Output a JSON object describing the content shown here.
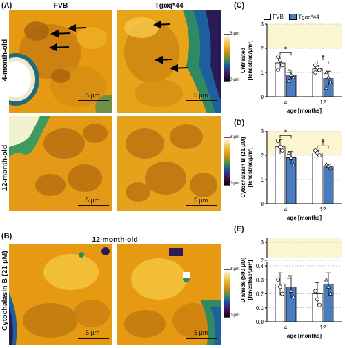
{
  "panels": {
    "A": "(A)",
    "B": "(B)",
    "C": "(C)",
    "D": "(D)",
    "E": "(E)"
  },
  "micrographs": {
    "col_fvb": "FVB",
    "col_tg": "Tgαq*44",
    "row_4m": "4-month-old",
    "row_12m": "12-month-old",
    "b_title": "12-month-old",
    "b_row": "Cytochalasin B (21 μM)",
    "scale": "5 μm",
    "cbar_top": "3 μm",
    "cbar_bottom": "0 μm"
  },
  "legend": {
    "fvb": "FVB",
    "tg": "Tgαq*44"
  },
  "colors": {
    "fvb_bar": "#ffffff",
    "tg_bar": "#4a7bbf",
    "shade": "#fbf6cf"
  },
  "chart_data": [
    {
      "type": "bar",
      "panel": "C",
      "ylabel": "Untreated\n[fenestrae/μm²]",
      "xlabel": "age [months]",
      "categories": [
        "4",
        "12"
      ],
      "ylim": [
        0,
        3
      ],
      "yticks": [
        0,
        1,
        2,
        3
      ],
      "series": [
        {
          "name": "FVB",
          "values": [
            1.4,
            1.15
          ],
          "err": [
            0.25,
            0.15
          ],
          "points": [
            [
              1.65,
              1.5,
              1.3,
              1.1
            ],
            [
              1.3,
              1.2,
              1.1,
              1.0
            ]
          ]
        },
        {
          "name": "Tgαq*44",
          "values": [
            0.9,
            0.75
          ],
          "err": [
            0.2,
            0.3
          ],
          "points": [
            [
              1.05,
              0.9,
              0.8,
              0.65
            ],
            [
              1.0,
              0.8,
              0.6,
              0.35
            ]
          ]
        }
      ],
      "annotations": [
        "*",
        "†"
      ]
    },
    {
      "type": "bar",
      "panel": "D",
      "ylabel": "Cytochalasin B (21 μM)\n[fenestrae/μm²]",
      "xlabel": "age [months]",
      "categories": [
        "4",
        "12"
      ],
      "ylim": [
        0,
        3
      ],
      "yticks": [
        0,
        1,
        2,
        3
      ],
      "series": [
        {
          "name": "FVB",
          "values": [
            2.35,
            2.1
          ],
          "err": [
            0.3,
            0.12
          ],
          "points": [
            [
              2.6,
              2.35,
              2.2
            ],
            [
              2.2,
              2.1,
              2.0
            ]
          ]
        },
        {
          "name": "Tgαq*44",
          "values": [
            1.9,
            1.55
          ],
          "err": [
            0.25,
            0.08
          ],
          "points": [
            [
              2.1,
              1.9,
              1.6
            ],
            [
              1.62,
              1.55,
              1.48
            ]
          ]
        }
      ],
      "annotations": [
        "*",
        "†"
      ]
    },
    {
      "type": "bar",
      "panel": "E",
      "ylabel": "Diamide (500 μM)\n[fenestrae/μm²]",
      "xlabel": "age [months]",
      "categories": [
        "4",
        "12"
      ],
      "ylim": [
        0,
        3
      ],
      "yticks_lower": [
        0.0,
        0.1,
        0.2,
        0.3,
        0.4
      ],
      "yticks_upper": [
        2,
        3
      ],
      "series": [
        {
          "name": "FVB",
          "values": [
            0.27,
            0.2
          ],
          "err": [
            0.08,
            0.08
          ],
          "points": [
            [
              0.3,
              0.25,
              0.2
            ],
            [
              0.22,
              0.16,
              0.12
            ]
          ]
        },
        {
          "name": "Tgαq*44",
          "values": [
            0.25,
            0.27
          ],
          "err": [
            0.08,
            0.08
          ],
          "points": [
            [
              0.32,
              0.22,
              0.18
            ],
            [
              0.3,
              0.25,
              0.2
            ]
          ]
        }
      ],
      "annotations": []
    }
  ]
}
